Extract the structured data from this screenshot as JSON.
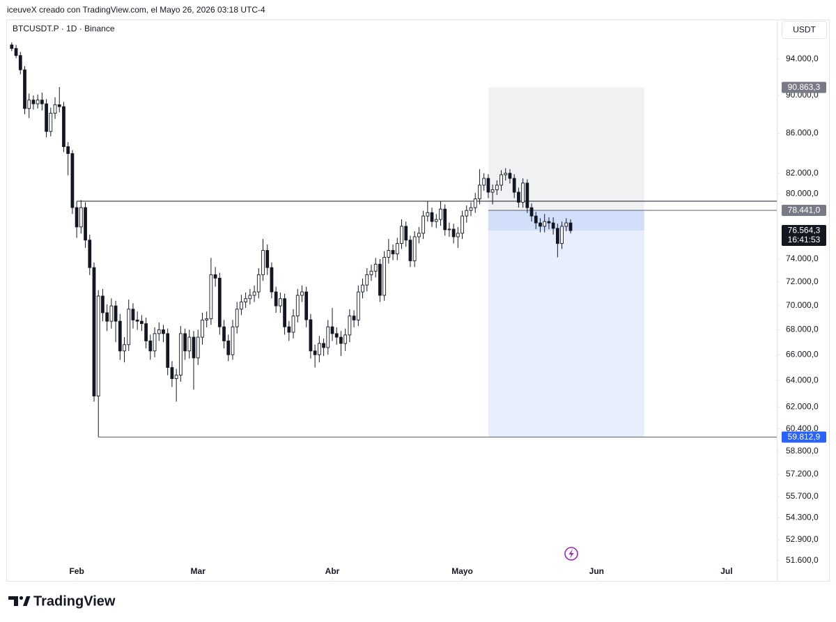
{
  "header": {
    "text": "iceuveX creado con TradingView.com, el Mayo 26, 2026 03:18 UTC-4"
  },
  "brand": "TradingView",
  "chart_data": {
    "type": "candlestick",
    "title": "BTCUSDT.P · 1D · Binance",
    "currency": "USDT",
    "log": true,
    "grid": false,
    "up_color": "#ffffff",
    "down_color": "#131722",
    "outline_color": "#131722",
    "xlim": [
      -1.1,
      176.6
    ],
    "xticks": [
      {
        "value": 15,
        "label": "Feb"
      },
      {
        "value": 43,
        "label": "Mar"
      },
      {
        "value": 74,
        "label": "Abr"
      },
      {
        "value": 104,
        "label": "Mayo"
      },
      {
        "value": 135,
        "label": "Jun"
      },
      {
        "value": 165,
        "label": "Jul"
      }
    ],
    "ylim": [
      50400,
      96200
    ],
    "yticks": [
      {
        "value": 94000,
        "label": "94.000,0"
      },
      {
        "value": 90000,
        "label": "90.000,0"
      },
      {
        "value": 86000,
        "label": "86.000,0"
      },
      {
        "value": 82000,
        "label": "82.000,0"
      },
      {
        "value": 80000,
        "label": "80.000,0"
      },
      {
        "value": 74000,
        "label": "74.000,0"
      },
      {
        "value": 72000,
        "label": "72.000,0"
      },
      {
        "value": 70000,
        "label": "70.000,0"
      },
      {
        "value": 68000,
        "label": "68.000,0"
      },
      {
        "value": 66000,
        "label": "66.000,0"
      },
      {
        "value": 64000,
        "label": "64.000,0"
      },
      {
        "value": 62000,
        "label": "62.000,0"
      },
      {
        "value": 60400,
        "label": "60.400,0"
      },
      {
        "value": 58800,
        "label": "58.800,0"
      },
      {
        "value": 57200,
        "label": "57.200,0"
      },
      {
        "value": 55700,
        "label": "55.700,0"
      },
      {
        "value": 54300,
        "label": "54.300,0"
      },
      {
        "value": 52900,
        "label": "52.900,0"
      },
      {
        "value": 51600,
        "label": "51.600,0"
      }
    ],
    "open": [
      95600,
      95200,
      94400,
      92800,
      88600,
      89500,
      89100,
      89500,
      89100,
      86200,
      88100,
      89000,
      88800,
      84650,
      83950,
      78700,
      76900,
      78700,
      75700,
      73250,
      62820,
      70800,
      69400,
      68700,
      69970,
      68700,
      66300,
      66800,
      69700,
      68800,
      68700,
      68500,
      67100,
      66300,
      67690,
      68000,
      67690,
      65000,
      64140,
      64410,
      67690,
      66300,
      67400,
      65750,
      67400,
      68800,
      68900,
      72630,
      72330,
      68240,
      67100,
      66000,
      68240,
      69700,
      70300,
      70580,
      70860,
      71150,
      72630,
      74770,
      73250,
      71150,
      69970,
      70580,
      68240,
      67800,
      69130,
      70860,
      71150,
      68820,
      66300,
      66000,
      66900,
      66570,
      68240,
      67690,
      67400,
      66900,
      67580,
      69130,
      68800,
      71150,
      71740,
      72630,
      72940,
      73550,
      70860,
      74160,
      74770,
      74460,
      75390,
      76960,
      75700,
      73850,
      76000,
      76320,
      77910,
      78230,
      77400,
      77590,
      78560,
      76640,
      76700,
      76000,
      76320,
      77910,
      78430,
      78690,
      79530,
      80840,
      81500,
      80160,
      80400,
      80840,
      81850,
      82000,
      81500,
      80160,
      79200,
      81040,
      78690,
      77910,
      77270,
      76960,
      77400,
      77270,
      76770,
      75390,
      76960,
      77270
    ],
    "high": [
      95900,
      95600,
      94800,
      93200,
      90200,
      90000,
      90100,
      90300,
      89600,
      88700,
      89800,
      90900,
      89300,
      85100,
      84300,
      79300,
      79400,
      79200,
      76200,
      73700,
      71300,
      71400,
      70100,
      70600,
      70400,
      69300,
      67400,
      70500,
      70200,
      69500,
      69200,
      69000,
      67600,
      68200,
      68600,
      68400,
      68100,
      65500,
      64900,
      68300,
      68100,
      68000,
      67900,
      68000,
      69400,
      69500,
      74100,
      73300,
      72800,
      68800,
      67600,
      68800,
      70300,
      70900,
      71100,
      71400,
      71700,
      73200,
      75800,
      75300,
      73700,
      71600,
      71100,
      71000,
      68700,
      69700,
      71400,
      71700,
      71600,
      69300,
      66800,
      67500,
      67300,
      68800,
      69800,
      68200,
      67900,
      68100,
      69700,
      69600,
      71700,
      72300,
      73200,
      73500,
      74100,
      74000,
      74700,
      75800,
      75300,
      75900,
      77600,
      77400,
      76100,
      76500,
      76900,
      78400,
      79300,
      78700,
      78100,
      79300,
      79000,
      77300,
      77200,
      76900,
      78400,
      78900,
      79200,
      80100,
      82400,
      82000,
      81900,
      80900,
      81300,
      82300,
      82500,
      82400,
      81900,
      80600,
      81500,
      81400,
      79100,
      78300,
      77700,
      78100,
      77800,
      77800,
      77200,
      77400,
      77700,
      77600
    ],
    "low": [
      94900,
      94100,
      92300,
      88000,
      87600,
      88500,
      88600,
      88400,
      85600,
      85700,
      87500,
      88200,
      84100,
      81800,
      78100,
      75900,
      76300,
      75000,
      72600,
      62400,
      59812.9,
      68700,
      67900,
      68100,
      67000,
      65600,
      65400,
      66300,
      68100,
      68000,
      67900,
      66500,
      65600,
      65800,
      67100,
      67000,
      64400,
      63500,
      62400,
      63900,
      65600,
      65700,
      63300,
      65200,
      66800,
      68200,
      68400,
      71600,
      67600,
      66500,
      65500,
      65600,
      67700,
      69200,
      69800,
      70100,
      70300,
      70600,
      72100,
      72600,
      70600,
      69400,
      69400,
      67600,
      67100,
      67300,
      68600,
      70300,
      68200,
      65700,
      65000,
      65400,
      65900,
      66000,
      67100,
      66800,
      65900,
      66300,
      67000,
      68200,
      68300,
      70600,
      71200,
      72100,
      72400,
      70300,
      70400,
      73600,
      73900,
      73900,
      74900,
      75100,
      73300,
      73300,
      75400,
      75800,
      77400,
      76900,
      76800,
      77000,
      76100,
      76000,
      75400,
      75000,
      75800,
      77300,
      77900,
      78200,
      79000,
      80300,
      79600,
      79000,
      79900,
      80300,
      81300,
      81000,
      79600,
      78700,
      78700,
      78200,
      77400,
      76700,
      76400,
      76400,
      76700,
      76200,
      74160,
      74900,
      76500,
      76300
    ],
    "close": [
      95200,
      94400,
      92800,
      88600,
      89500,
      89100,
      89500,
      89100,
      86200,
      88100,
      89000,
      88800,
      84650,
      83950,
      78700,
      76900,
      78700,
      75700,
      73250,
      62820,
      70800,
      69400,
      68700,
      69970,
      68700,
      66300,
      66800,
      69700,
      68800,
      68700,
      68500,
      67100,
      66300,
      67690,
      68000,
      67690,
      65000,
      64140,
      64410,
      67690,
      66300,
      67400,
      65750,
      67400,
      68800,
      68900,
      72630,
      72330,
      68240,
      67100,
      66000,
      68240,
      69700,
      70300,
      70580,
      70860,
      71150,
      72630,
      74770,
      73250,
      71150,
      69970,
      70580,
      68240,
      67800,
      69130,
      70860,
      71150,
      68820,
      66300,
      66000,
      66900,
      66570,
      68240,
      67690,
      67400,
      66900,
      67580,
      69130,
      68800,
      71150,
      71740,
      72630,
      72940,
      73550,
      70860,
      74160,
      74770,
      74460,
      75390,
      76960,
      75700,
      73850,
      76000,
      76320,
      77910,
      78230,
      77400,
      77590,
      78560,
      76640,
      76700,
      76000,
      76320,
      77910,
      78430,
      78690,
      79530,
      80840,
      81500,
      80160,
      80400,
      80840,
      81850,
      82000,
      81500,
      80160,
      79200,
      81040,
      78690,
      77910,
      77270,
      76960,
      77400,
      77270,
      76770,
      75390,
      76960,
      77270,
      76564.3
    ],
    "levels": [
      {
        "value": 79300,
        "from": 15,
        "color": "#131722"
      },
      {
        "value": 59812.9,
        "from": 20,
        "color": "#5d606b"
      }
    ],
    "position": {
      "from": 110,
      "to": 146,
      "stop": {
        "value": 90863.3,
        "label": "90.863,3"
      },
      "entry": {
        "value": 78441,
        "label": "78.441,0"
      },
      "target": {
        "value": 59812.9,
        "label": "59.812,9"
      },
      "stop_color": "#f0f1f3",
      "target_color": "#e8eefc",
      "open_color": "#d2dffb",
      "target_label_color": "#2962ff",
      "label_color": "#787b86"
    },
    "last_price": {
      "value": 76564.3,
      "label": "76.564,3",
      "countdown": "16:41:53"
    }
  }
}
